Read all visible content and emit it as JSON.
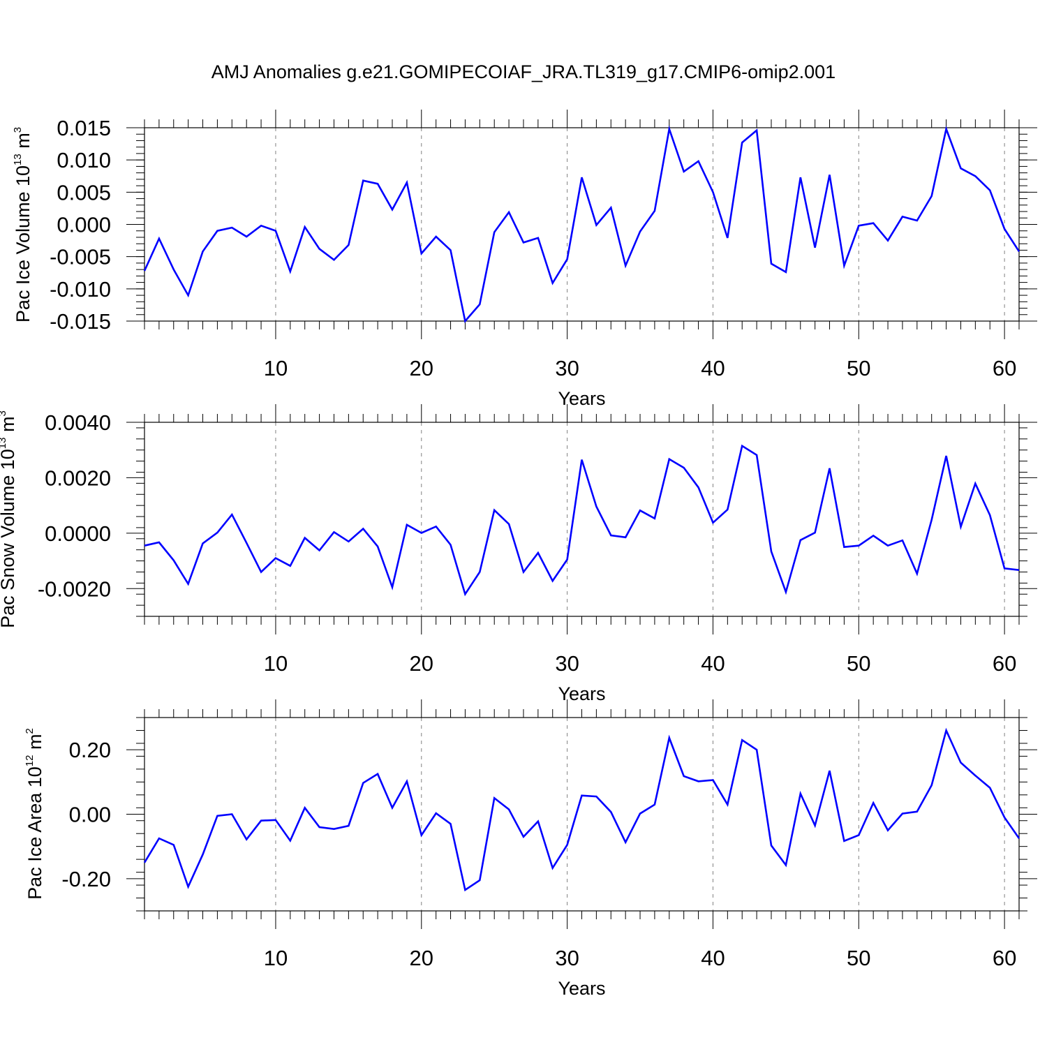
{
  "title": "AMJ Anomalies g.e21.GOMIPECOIAF_JRA.TL319_g17.CMIP6-omip2.001",
  "colors": {
    "line": "#0000ff",
    "axis": "#000000",
    "grid": "#808080"
  },
  "chart_data": [
    {
      "type": "line",
      "ylabel": {
        "text": "Pac Ice Volume 10",
        "exp": "13",
        "unit": " m",
        "unit_exp": "3"
      },
      "xlabel": "Years",
      "xlim": [
        1,
        61
      ],
      "ylim": [
        -0.015,
        0.015
      ],
      "yticks": [
        -0.015,
        -0.01,
        -0.005,
        0.0,
        0.005,
        0.01,
        0.015
      ],
      "ytick_labels": [
        "-0.015",
        "-0.010",
        "-0.005",
        "0.000",
        "0.005",
        "0.010",
        "0.015"
      ],
      "xticks": [
        10,
        20,
        30,
        40,
        50,
        60
      ],
      "xtick_labels": [
        "10",
        "20",
        "30",
        "40",
        "50",
        "60"
      ],
      "grid_x": [
        10,
        20,
        30,
        40,
        50,
        60
      ],
      "series": [
        {
          "x": [
            1,
            2,
            3,
            4,
            5,
            6,
            7,
            8,
            9,
            10,
            11,
            12,
            13,
            14,
            15,
            16,
            17,
            18,
            19,
            20,
            21,
            22,
            23,
            24,
            25,
            26,
            27,
            28,
            29,
            30,
            31,
            32,
            33,
            34,
            35,
            36,
            37,
            38,
            39,
            40,
            41,
            42,
            43,
            44,
            45,
            46,
            47,
            48,
            49,
            50,
            51,
            52,
            53,
            54,
            55,
            56,
            57,
            58,
            59,
            60,
            61
          ],
          "values": [
            -0.0072,
            -0.0022,
            -0.007,
            -0.011,
            -0.0042,
            -0.001,
            -0.0005,
            -0.0019,
            -0.0002,
            -0.001,
            -0.0073,
            -0.0004,
            -0.0038,
            -0.0055,
            -0.0032,
            0.0068,
            0.0063,
            0.0023,
            0.0065,
            -0.0045,
            -0.0019,
            -0.004,
            -0.015,
            -0.0124,
            -0.0012,
            0.0019,
            -0.0028,
            -0.0021,
            -0.0091,
            -0.0054,
            0.0073,
            -0.0001,
            0.0026,
            -0.0064,
            -0.0011,
            0.0021,
            0.0148,
            0.0082,
            0.0098,
            0.005,
            -0.0021,
            0.0127,
            0.0146,
            -0.0061,
            -0.0074,
            0.0073,
            -0.0036,
            0.0077,
            -0.0064,
            -0.0002,
            0.0002,
            -0.0025,
            0.0012,
            0.0006,
            0.0044,
            0.0148,
            0.0087,
            0.0075,
            0.0053,
            -0.0007,
            -0.0042
          ]
        }
      ]
    },
    {
      "type": "line",
      "ylabel": {
        "text": "Pac Snow Volume 10",
        "exp": "13",
        "unit": " m",
        "unit_exp": "3"
      },
      "xlabel": "Years",
      "xlim": [
        1,
        61
      ],
      "ylim": [
        -0.003,
        0.004
      ],
      "yticks": [
        -0.002,
        0.0,
        0.002,
        0.004
      ],
      "ytick_labels": [
        "-0.0020",
        "0.0000",
        "0.0020",
        "0.0040"
      ],
      "xticks": [
        10,
        20,
        30,
        40,
        50,
        60
      ],
      "xtick_labels": [
        "10",
        "20",
        "30",
        "40",
        "50",
        "60"
      ],
      "grid_x": [
        10,
        20,
        30,
        40,
        50,
        60
      ],
      "series": [
        {
          "x": [
            1,
            2,
            3,
            4,
            5,
            6,
            7,
            8,
            9,
            10,
            11,
            12,
            13,
            14,
            15,
            16,
            17,
            18,
            19,
            20,
            21,
            22,
            23,
            24,
            25,
            26,
            27,
            28,
            29,
            30,
            31,
            32,
            33,
            34,
            35,
            36,
            37,
            38,
            39,
            40,
            41,
            42,
            43,
            44,
            45,
            46,
            47,
            48,
            49,
            50,
            51,
            52,
            53,
            54,
            55,
            56,
            57,
            58,
            59,
            60,
            61
          ],
          "values": [
            -0.00045,
            -0.00033,
            -0.00098,
            -0.00183,
            -0.00037,
            2e-05,
            0.00067,
            -0.00035,
            -0.0014,
            -0.0009,
            -0.00118,
            -0.00017,
            -0.00062,
            4e-05,
            -0.0003,
            0.00016,
            -0.00048,
            -0.00195,
            0.0003,
            1e-05,
            0.00024,
            -0.00042,
            -0.0022,
            -0.0014,
            0.00083,
            0.00033,
            -0.0014,
            -0.00071,
            -0.00172,
            -0.00095,
            0.00265,
            0.00096,
            -8e-05,
            -0.00015,
            0.00082,
            0.00053,
            0.00267,
            0.00236,
            0.00165,
            0.00038,
            0.00085,
            0.00315,
            0.00282,
            -0.00066,
            -0.00212,
            -0.00025,
            2e-05,
            0.00234,
            -0.0005,
            -0.00045,
            -9e-05,
            -0.00045,
            -0.00026,
            -0.00146,
            0.00048,
            0.00279,
            0.00023,
            0.00179,
            0.00065,
            -0.00127,
            -0.00133
          ]
        }
      ]
    },
    {
      "type": "line",
      "ylabel": {
        "text": "Pac Ice Area 10",
        "exp": "12",
        "unit": " m",
        "unit_exp": "2"
      },
      "xlabel": "Years",
      "xlim": [
        1,
        61
      ],
      "ylim": [
        -0.3,
        0.3
      ],
      "yticks": [
        -0.2,
        0.0,
        0.2
      ],
      "ytick_labels": [
        "-0.20",
        "0.00",
        "0.20"
      ],
      "xticks": [
        10,
        20,
        30,
        40,
        50,
        60
      ],
      "xtick_labels": [
        "10",
        "20",
        "30",
        "40",
        "50",
        "60"
      ],
      "grid_x": [
        10,
        20,
        30,
        40,
        50,
        60
      ],
      "series": [
        {
          "x": [
            1,
            2,
            3,
            4,
            5,
            6,
            7,
            8,
            9,
            10,
            11,
            12,
            13,
            14,
            15,
            16,
            17,
            18,
            19,
            20,
            21,
            22,
            23,
            24,
            25,
            26,
            27,
            28,
            29,
            30,
            31,
            32,
            33,
            34,
            35,
            36,
            37,
            38,
            39,
            40,
            41,
            42,
            43,
            44,
            45,
            46,
            47,
            48,
            49,
            50,
            51,
            52,
            53,
            54,
            55,
            56,
            57,
            58,
            59,
            60,
            61
          ],
          "values": [
            -0.15,
            -0.075,
            -0.095,
            -0.225,
            -0.125,
            -0.005,
            0.0,
            -0.078,
            -0.02,
            -0.018,
            -0.082,
            0.02,
            -0.04,
            -0.046,
            -0.036,
            0.097,
            0.125,
            0.02,
            0.102,
            -0.065,
            0.003,
            -0.03,
            -0.235,
            -0.205,
            0.05,
            0.015,
            -0.07,
            -0.022,
            -0.167,
            -0.095,
            0.058,
            0.055,
            0.007,
            -0.087,
            0.002,
            0.03,
            0.237,
            0.118,
            0.102,
            0.106,
            0.03,
            0.23,
            0.2,
            -0.097,
            -0.158,
            0.064,
            -0.035,
            0.135,
            -0.083,
            -0.065,
            0.035,
            -0.05,
            0.002,
            0.008,
            0.09,
            0.26,
            0.16,
            0.12,
            0.082,
            -0.01,
            -0.075
          ]
        }
      ]
    }
  ]
}
